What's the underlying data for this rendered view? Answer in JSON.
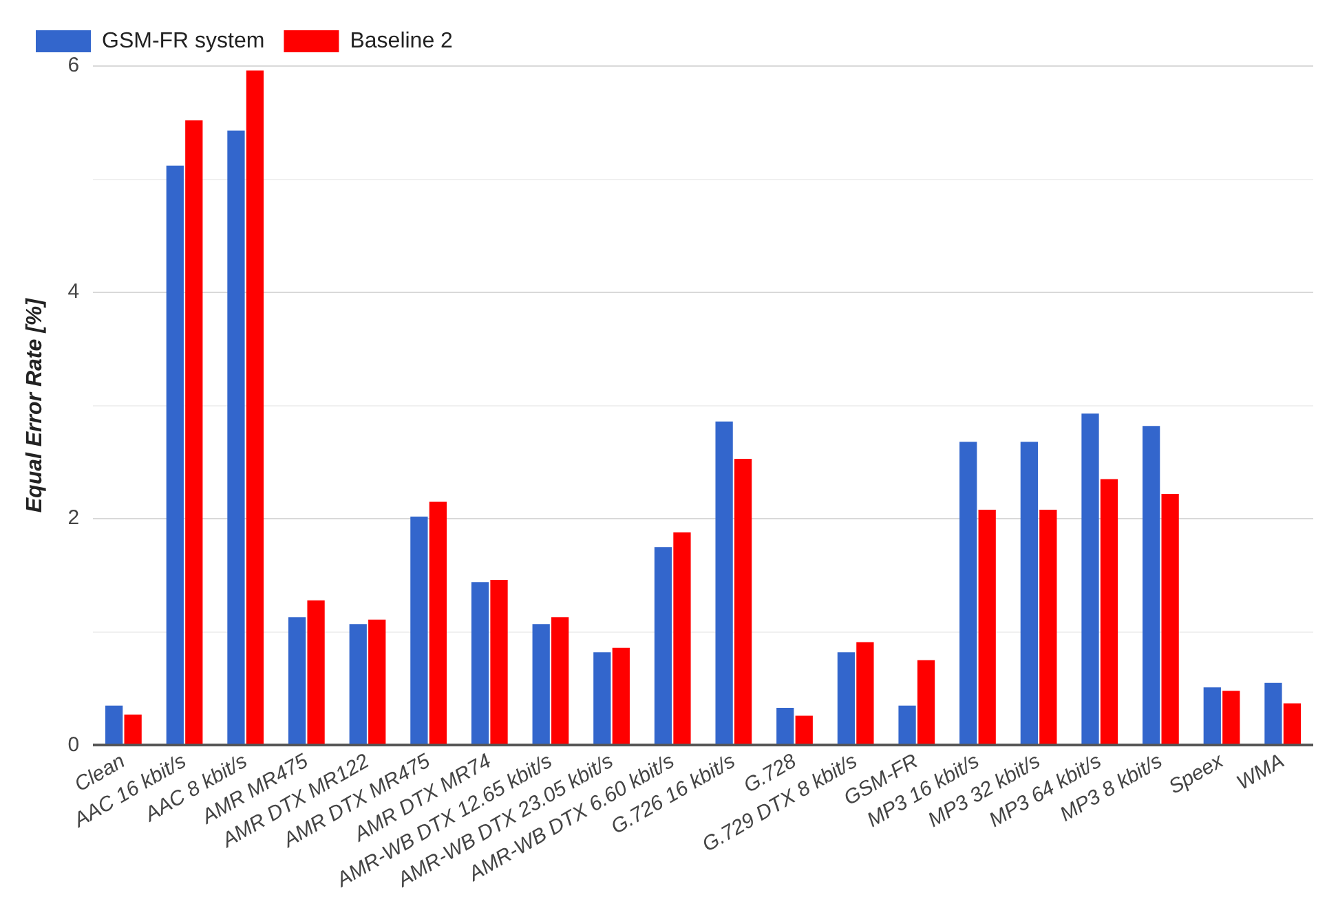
{
  "chart_data": {
    "type": "bar",
    "ylabel": "Equal Error Rate [%]",
    "categories": [
      "Clean",
      "AAC 16 kbit/s",
      "AAC 8 kbit/s",
      "AMR MR475",
      "AMR DTX MR122",
      "AMR DTX MR475",
      "AMR DTX MR74",
      "AMR-WB DTX 12.65 kbit/s",
      "AMR-WB DTX 23.05 kbit/s",
      "AMR-WB DTX 6.60 kbit/s",
      "G.726 16 kbit/s",
      "G.728",
      "G.729 DTX 8 kbit/s",
      "GSM-FR",
      "MP3 16 kbit/s",
      "MP3 32 kbit/s",
      "MP3 64 kbit/s",
      "MP3 8 kbit/s",
      "Speex",
      "WMA"
    ],
    "series": [
      {
        "name": "GSM-FR system",
        "color": "#3366cc",
        "values": [
          0.35,
          5.12,
          5.43,
          1.13,
          1.07,
          2.02,
          1.44,
          1.07,
          0.82,
          1.75,
          2.86,
          0.33,
          0.82,
          0.35,
          2.68,
          2.68,
          2.93,
          2.82,
          0.51,
          0.55
        ]
      },
      {
        "name": "Baseline 2",
        "color": "#ff0000",
        "values": [
          0.27,
          5.52,
          5.96,
          1.28,
          1.11,
          2.15,
          1.46,
          1.13,
          0.86,
          1.88,
          2.53,
          0.26,
          0.91,
          0.75,
          2.08,
          2.08,
          2.35,
          2.22,
          0.48,
          0.37
        ]
      }
    ],
    "ylim": [
      0,
      6
    ],
    "yticks": [
      0,
      {
        "value": 1,
        "label": null
      },
      2,
      {
        "value": 3,
        "label": null
      },
      4,
      {
        "value": 5,
        "label": null
      },
      6
    ],
    "grid": "y",
    "legend": "top left"
  }
}
